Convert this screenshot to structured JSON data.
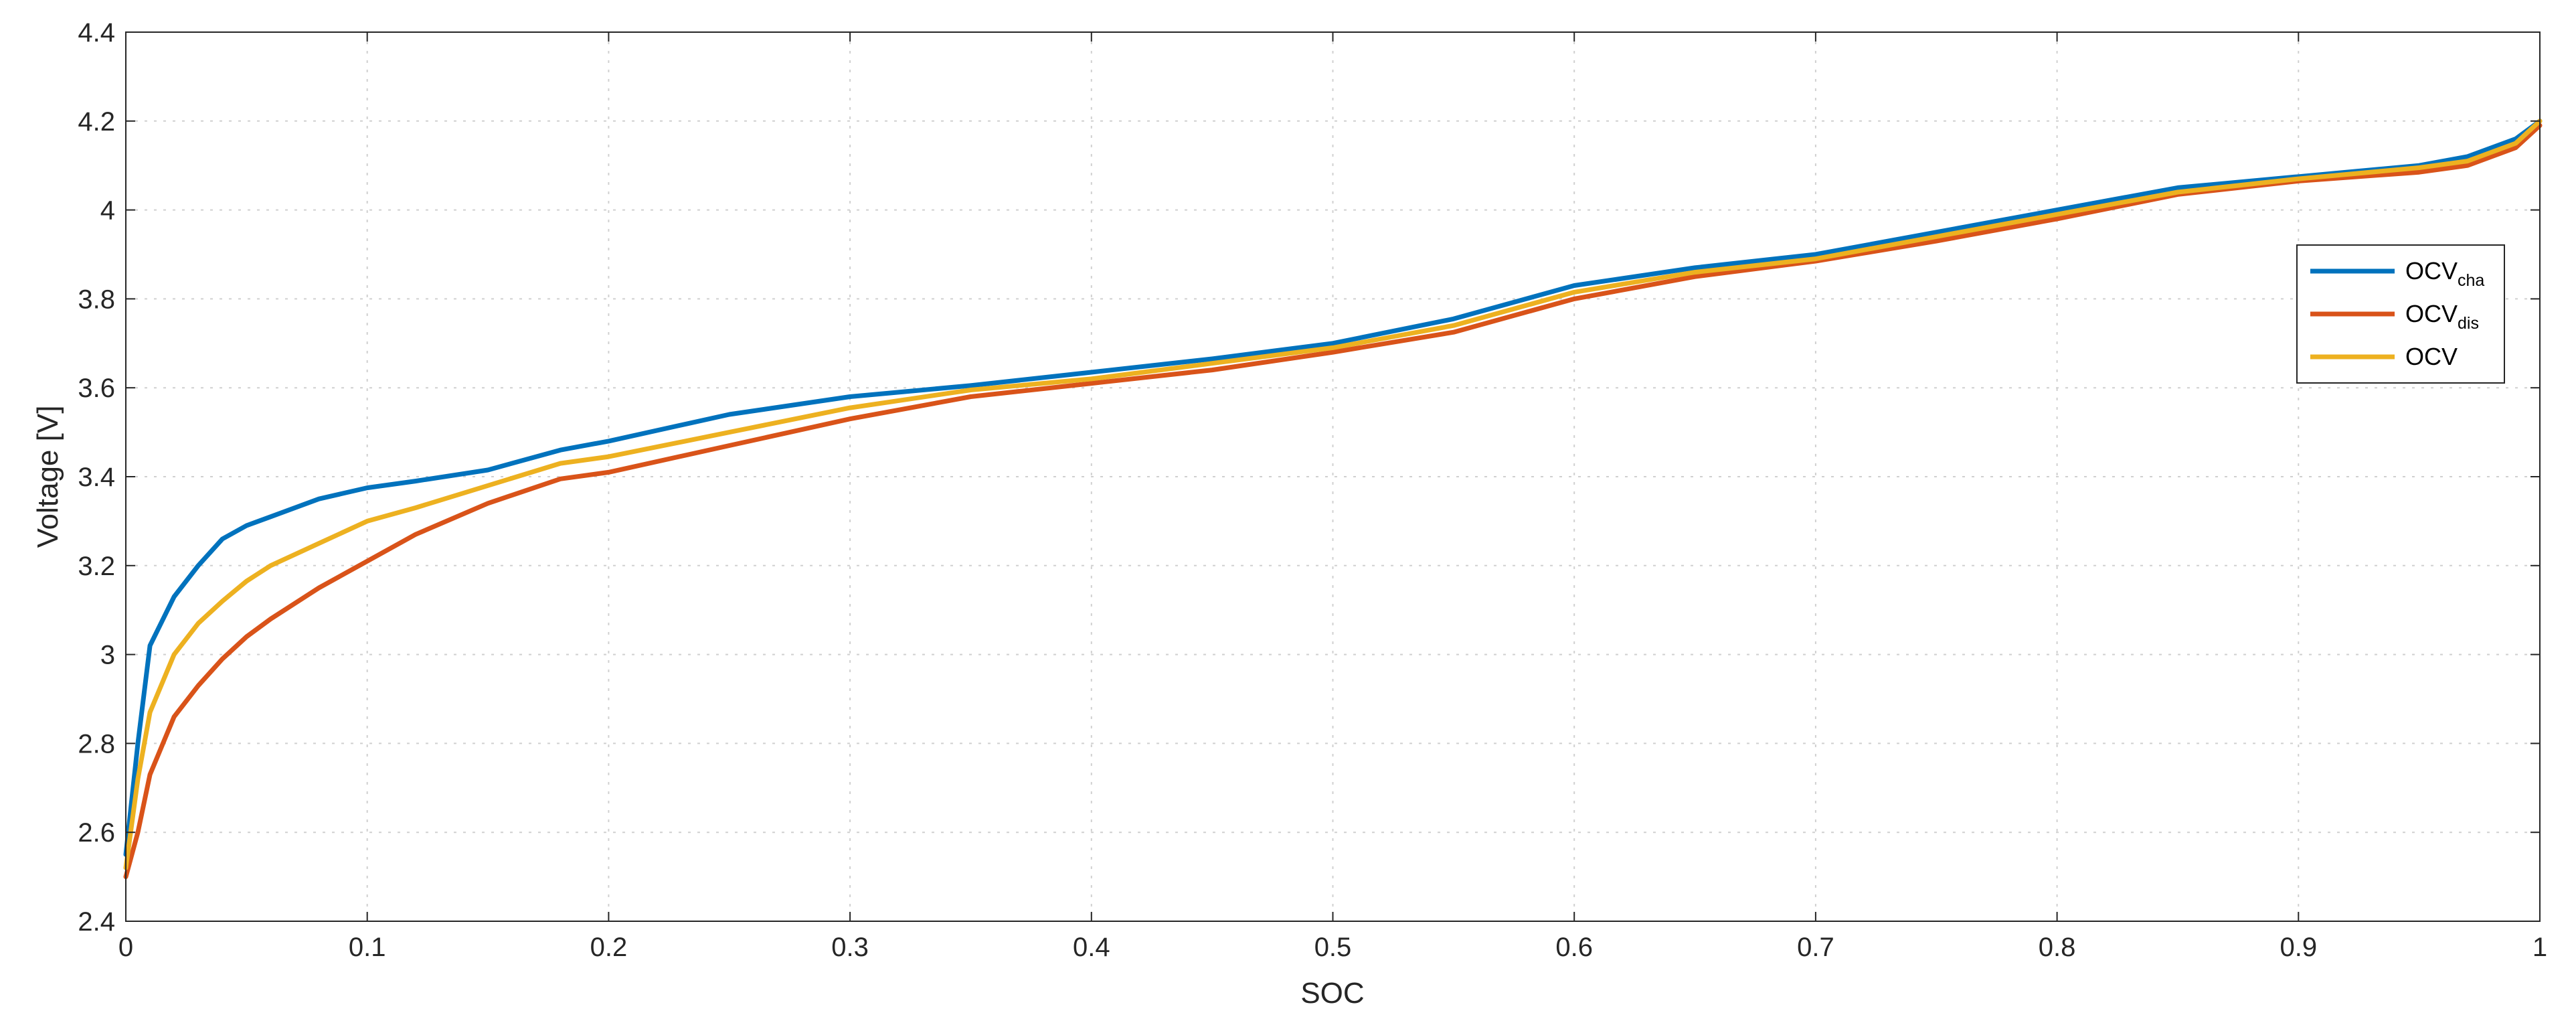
{
  "chart_data": {
    "type": "line",
    "title": "",
    "xlabel": "SOC",
    "ylabel": "Voltage [V]",
    "xlim": [
      0,
      1
    ],
    "ylim": [
      2.4,
      4.4
    ],
    "grid": true,
    "legend_position": "right",
    "x_ticks": [
      "0",
      "0.1",
      "0.2",
      "0.3",
      "0.4",
      "0.5",
      "0.6",
      "0.7",
      "0.8",
      "0.9",
      "1"
    ],
    "y_ticks": [
      "2.4",
      "2.6",
      "2.8",
      "3",
      "3.2",
      "3.4",
      "3.6",
      "3.8",
      "4",
      "4.2",
      "4.4"
    ],
    "x": [
      0,
      0.005,
      0.01,
      0.02,
      0.03,
      0.04,
      0.05,
      0.06,
      0.08,
      0.1,
      0.12,
      0.15,
      0.18,
      0.2,
      0.25,
      0.3,
      0.35,
      0.4,
      0.45,
      0.5,
      0.55,
      0.6,
      0.65,
      0.7,
      0.75,
      0.8,
      0.85,
      0.9,
      0.95,
      0.97,
      0.99,
      1.0
    ],
    "series": [
      {
        "legend_main": "OCV",
        "legend_sub": "cha",
        "color": "#0072BD",
        "values": [
          2.55,
          2.8,
          3.02,
          3.13,
          3.2,
          3.26,
          3.29,
          3.31,
          3.35,
          3.375,
          3.39,
          3.415,
          3.46,
          3.48,
          3.54,
          3.58,
          3.605,
          3.635,
          3.665,
          3.7,
          3.755,
          3.83,
          3.87,
          3.9,
          3.95,
          4.0,
          4.05,
          4.075,
          4.1,
          4.12,
          4.16,
          4.2
        ]
      },
      {
        "legend_main": "OCV",
        "legend_sub": "dis",
        "color": "#D95319",
        "values": [
          2.5,
          2.6,
          2.73,
          2.86,
          2.93,
          2.99,
          3.04,
          3.08,
          3.15,
          3.21,
          3.27,
          3.34,
          3.395,
          3.41,
          3.47,
          3.53,
          3.58,
          3.61,
          3.64,
          3.68,
          3.725,
          3.8,
          3.85,
          3.885,
          3.93,
          3.98,
          4.035,
          4.065,
          4.085,
          4.1,
          4.14,
          4.19
        ]
      },
      {
        "legend_main": "OCV",
        "legend_sub": "",
        "color": "#EDB120",
        "values": [
          2.52,
          2.72,
          2.87,
          3.0,
          3.07,
          3.12,
          3.165,
          3.2,
          3.25,
          3.3,
          3.33,
          3.38,
          3.43,
          3.445,
          3.5,
          3.555,
          3.595,
          3.62,
          3.655,
          3.69,
          3.74,
          3.815,
          3.86,
          3.89,
          3.94,
          3.99,
          4.04,
          4.07,
          4.095,
          4.11,
          4.15,
          4.2
        ]
      }
    ]
  }
}
